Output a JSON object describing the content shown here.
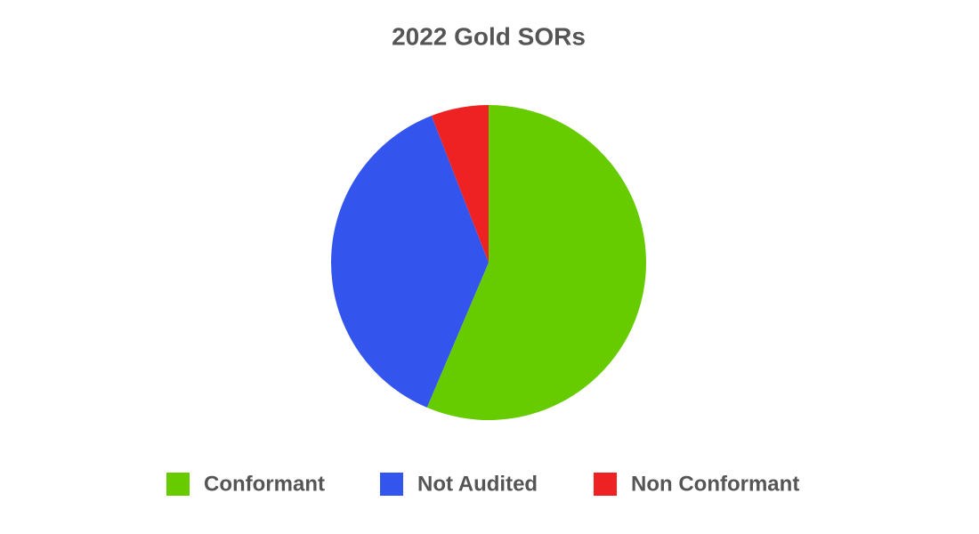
{
  "chart_data": {
    "type": "pie",
    "title": "2022 Gold SORs",
    "categories": [
      "Conformant",
      "Not Audited",
      "Non Conformant"
    ],
    "values": [
      56.4,
      37.7,
      5.9
    ],
    "colors": [
      "#66cc00",
      "#3355ee",
      "#ee2222"
    ],
    "legend": "bottom"
  }
}
